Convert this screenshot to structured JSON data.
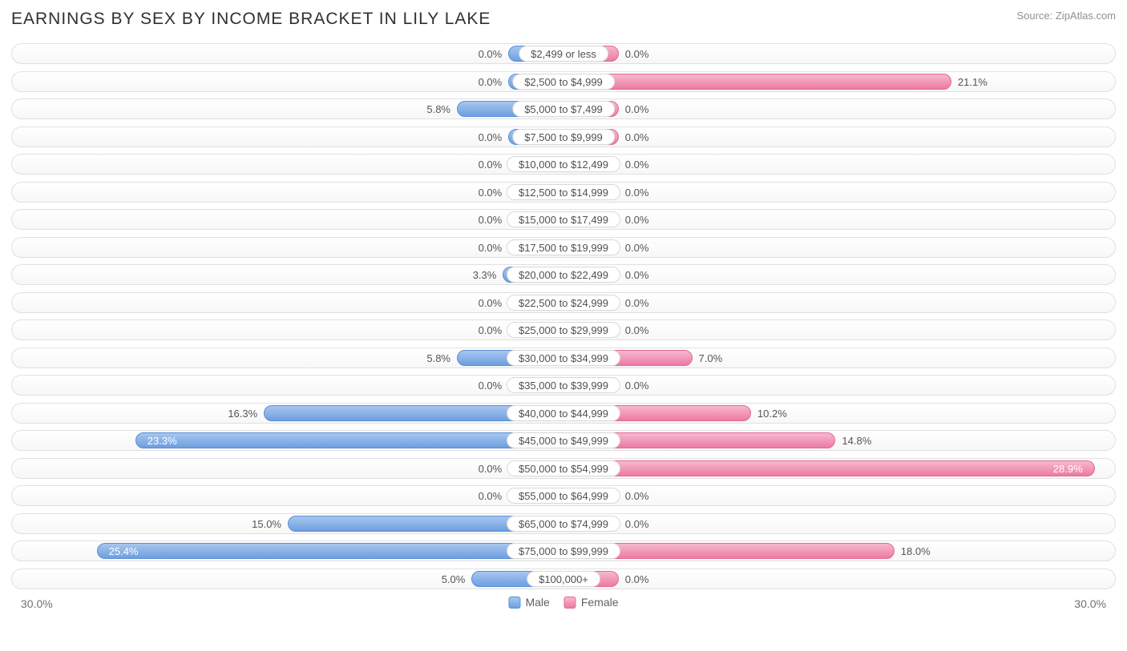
{
  "title": "EARNINGS BY SEX BY INCOME BRACKET IN LILY LAKE",
  "source": "Source: ZipAtlas.com",
  "axis_max_percent": 30.0,
  "axis_max_label_left": "30.0%",
  "axis_max_label_right": "30.0%",
  "min_bar_percent": 3.0,
  "legend": {
    "male": "Male",
    "female": "Female"
  },
  "colors": {
    "male_fill_top": "#a7c6ef",
    "male_fill_bottom": "#6d9fe0",
    "male_border": "#5a8fd4",
    "female_fill_top": "#f7b8cd",
    "female_fill_bottom": "#ed7aa4",
    "female_border": "#e26a95",
    "track_border": "#e0e0e0",
    "label_text": "#555555",
    "label_text_inside": "#ffffff",
    "title_text": "#303030",
    "source_text": "#909090"
  },
  "rows": [
    {
      "bracket": "$2,499 or less",
      "male": 0.0,
      "female": 0.0
    },
    {
      "bracket": "$2,500 to $4,999",
      "male": 0.0,
      "female": 21.1
    },
    {
      "bracket": "$5,000 to $7,499",
      "male": 5.8,
      "female": 0.0
    },
    {
      "bracket": "$7,500 to $9,999",
      "male": 0.0,
      "female": 0.0
    },
    {
      "bracket": "$10,000 to $12,499",
      "male": 0.0,
      "female": 0.0
    },
    {
      "bracket": "$12,500 to $14,999",
      "male": 0.0,
      "female": 0.0
    },
    {
      "bracket": "$15,000 to $17,499",
      "male": 0.0,
      "female": 0.0
    },
    {
      "bracket": "$17,500 to $19,999",
      "male": 0.0,
      "female": 0.0
    },
    {
      "bracket": "$20,000 to $22,499",
      "male": 3.3,
      "female": 0.0
    },
    {
      "bracket": "$22,500 to $24,999",
      "male": 0.0,
      "female": 0.0
    },
    {
      "bracket": "$25,000 to $29,999",
      "male": 0.0,
      "female": 0.0
    },
    {
      "bracket": "$30,000 to $34,999",
      "male": 5.8,
      "female": 7.0
    },
    {
      "bracket": "$35,000 to $39,999",
      "male": 0.0,
      "female": 0.0
    },
    {
      "bracket": "$40,000 to $44,999",
      "male": 16.3,
      "female": 10.2
    },
    {
      "bracket": "$45,000 to $49,999",
      "male": 23.3,
      "female": 14.8
    },
    {
      "bracket": "$50,000 to $54,999",
      "male": 0.0,
      "female": 28.9
    },
    {
      "bracket": "$55,000 to $64,999",
      "male": 0.0,
      "female": 0.0
    },
    {
      "bracket": "$65,000 to $74,999",
      "male": 15.0,
      "female": 0.0
    },
    {
      "bracket": "$75,000 to $99,999",
      "male": 25.4,
      "female": 18.0
    },
    {
      "bracket": "$100,000+",
      "male": 5.0,
      "female": 0.0
    }
  ]
}
